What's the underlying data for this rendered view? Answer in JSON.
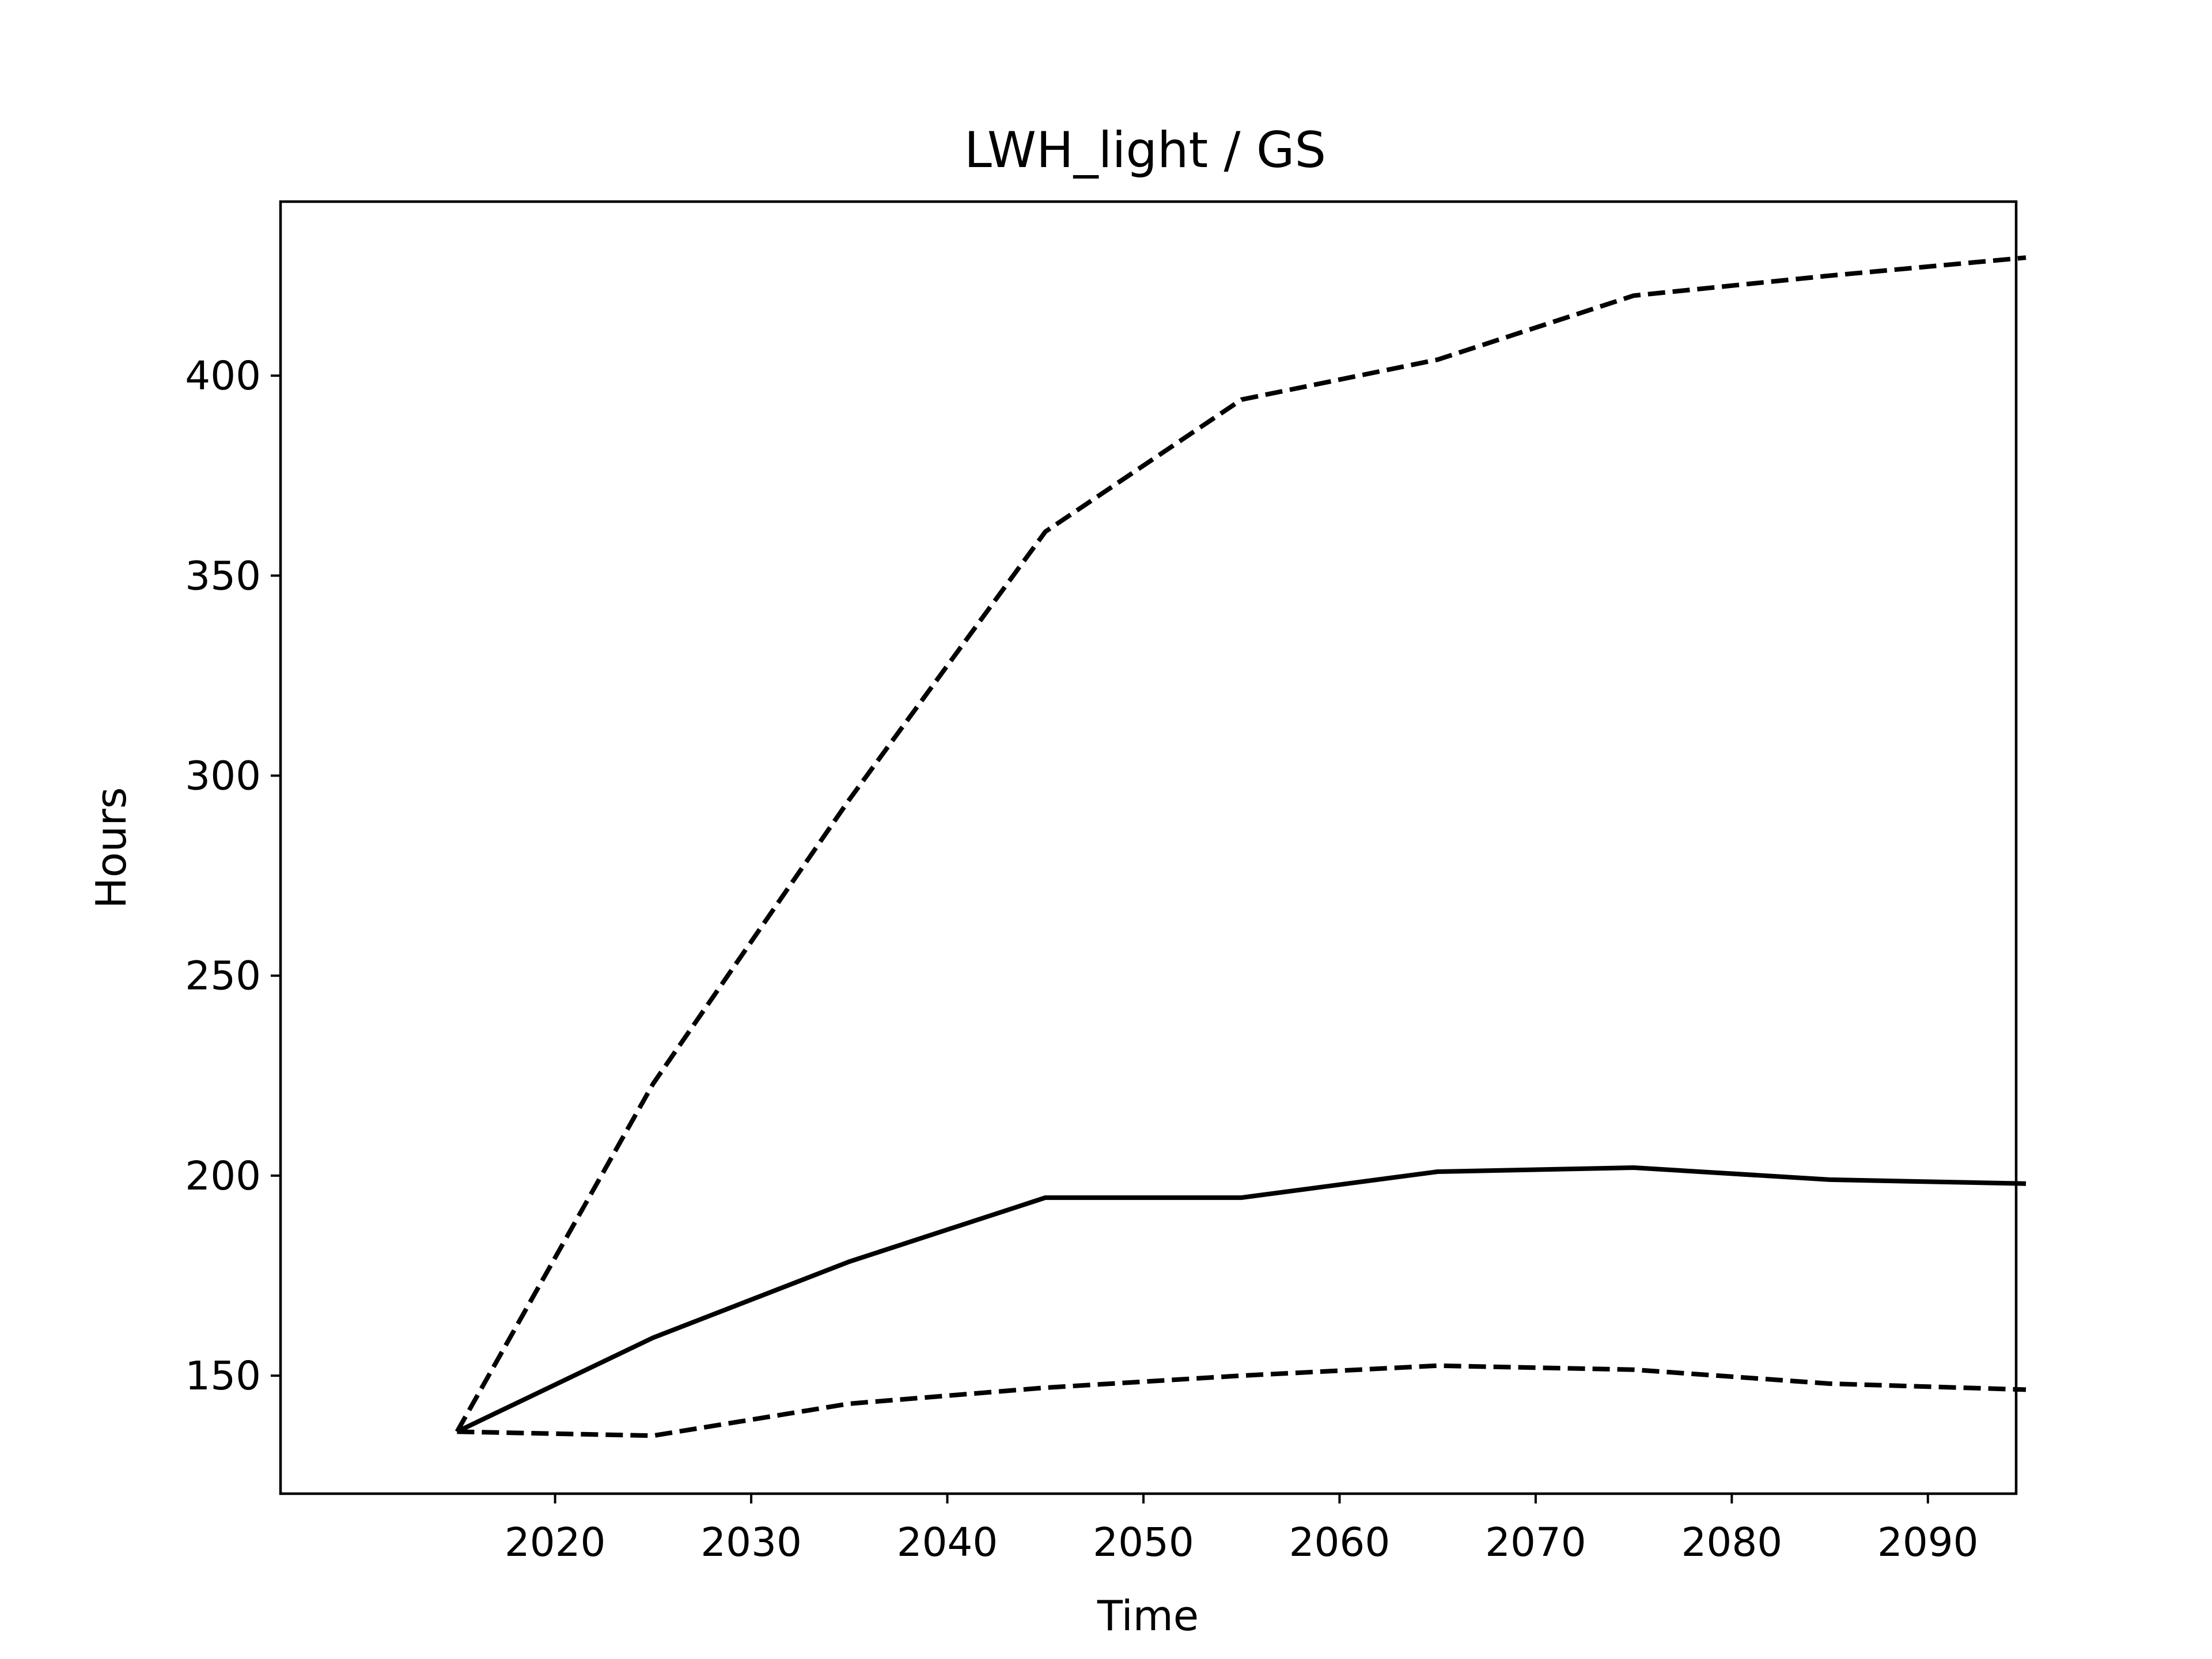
{
  "chart_data": {
    "type": "line",
    "title": "LWH_light / GS",
    "xlabel": "Time",
    "ylabel": "Hours",
    "x": [
      2015,
      2025,
      2035,
      2045,
      2055,
      2065,
      2075,
      2085,
      2095
    ],
    "xlim": [
      2006,
      2094.5
    ],
    "ylim": [
      120.5,
      443.5
    ],
    "xticks": [
      2020,
      2030,
      2040,
      2050,
      2060,
      2070,
      2080,
      2090
    ],
    "yticks": [
      150,
      200,
      250,
      300,
      350,
      400
    ],
    "grid": false,
    "legend": "none",
    "series": [
      {
        "style": "dashed",
        "color": "#000000",
        "values": [
          136,
          223,
          294,
          361,
          394,
          404,
          420,
          425,
          429.5
        ]
      },
      {
        "style": "solid",
        "color": "#000000",
        "values": [
          136,
          159.5,
          178.5,
          194.5,
          194.5,
          201,
          202,
          199,
          198
        ]
      },
      {
        "style": "dashed",
        "color": "#000000",
        "values": [
          136,
          135,
          143,
          147,
          150,
          152.5,
          151.5,
          148,
          146.5
        ]
      }
    ]
  }
}
